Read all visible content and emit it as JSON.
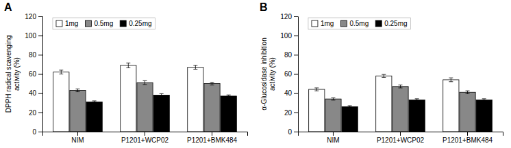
{
  "chart_data": [
    {
      "type": "bar",
      "title": "A",
      "y_label": "DPPH radical scavenging\nactivity (%)",
      "categories": [
        "NIM",
        "P1201+WCP02",
        "P1201+BMK484"
      ],
      "series": [
        {
          "name": "1mg",
          "color": "#ffffff",
          "values": [
            62,
            69,
            67
          ],
          "errors": [
            2.0,
            2.5,
            2.0
          ]
        },
        {
          "name": "0.5mg",
          "color": "#888888",
          "values": [
            43,
            51,
            50
          ],
          "errors": [
            1.5,
            2.0,
            1.5
          ]
        },
        {
          "name": "0.25mg",
          "color": "#000000",
          "values": [
            31,
            38,
            37
          ],
          "errors": [
            1.0,
            1.5,
            1.2
          ]
        }
      ],
      "ylim": [
        0,
        120
      ],
      "yticks": [
        0,
        20,
        40,
        60,
        80,
        100,
        120
      ],
      "grid": false,
      "legend": "upper left"
    },
    {
      "type": "bar",
      "title": "B",
      "y_label": "α-Glucosidase inhibition\nactivity (%)",
      "categories": [
        "NIM",
        "P1201+WCP02",
        "P1201+BMK484"
      ],
      "series": [
        {
          "name": "1mg",
          "color": "#ffffff",
          "values": [
            44,
            58,
            54
          ],
          "errors": [
            1.5,
            1.5,
            2.0
          ]
        },
        {
          "name": "0.5mg",
          "color": "#888888",
          "values": [
            34,
            47,
            41
          ],
          "errors": [
            1.2,
            1.5,
            1.5
          ]
        },
        {
          "name": "0.25mg",
          "color": "#000000",
          "values": [
            26,
            33,
            33
          ],
          "errors": [
            1.0,
            1.2,
            1.2
          ]
        }
      ],
      "ylim": [
        0,
        120
      ],
      "yticks": [
        0,
        20,
        40,
        60,
        80,
        100,
        120
      ],
      "grid": false,
      "legend": "upper left"
    }
  ]
}
